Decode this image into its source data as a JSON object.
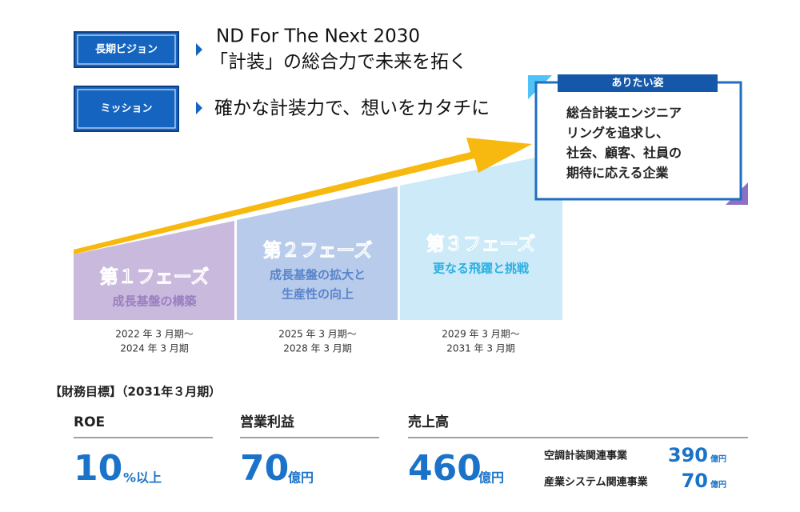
{
  "vision": {
    "label": "長期ビジョン",
    "lines": [
      "ND For The Next 2030",
      "「計装」の総合力で未来を拓く"
    ]
  },
  "mission": {
    "label": "ミッション",
    "text": "確かな計装力で、想いをカタチに"
  },
  "ideal": {
    "label": "ありたい姿",
    "lines": [
      "総合計装エンジニア",
      "リングを追求し、",
      "社会、顧客、社員の",
      "期待に応える企業"
    ]
  },
  "phases": [
    {
      "title": "第１フェーズ",
      "subtitle": [
        "成長基盤の構築"
      ],
      "period": [
        "2022 年 3 月期～",
        "2024 年 3 月期"
      ]
    },
    {
      "title": "第２フェーズ",
      "subtitle": [
        "成長基盤の拡大と",
        "生産性の向上"
      ],
      "period": [
        "2025 年 3 月期～",
        "2028 年 3 月期"
      ]
    },
    {
      "title": "第３フェーズ",
      "subtitle": [
        "更なる飛躍と挑戦"
      ],
      "period": [
        "2029 年 3 月期～",
        "2031 年 3 月期"
      ]
    }
  ],
  "financial": {
    "heading": "【財務目標】（2031年３月期）",
    "items": [
      {
        "label": "ROE",
        "value": "10",
        "unit": "%以上"
      },
      {
        "label": "営業利益",
        "value": "70",
        "unit": "億円"
      },
      {
        "label": "売上高",
        "value": "460",
        "unit": "億円"
      }
    ],
    "breakdown": [
      {
        "label": "空調計装関連事業",
        "value": "390",
        "unit": "億円"
      },
      {
        "label": "産業システム関連事業",
        "value": "70",
        "unit": "億円"
      }
    ]
  }
}
